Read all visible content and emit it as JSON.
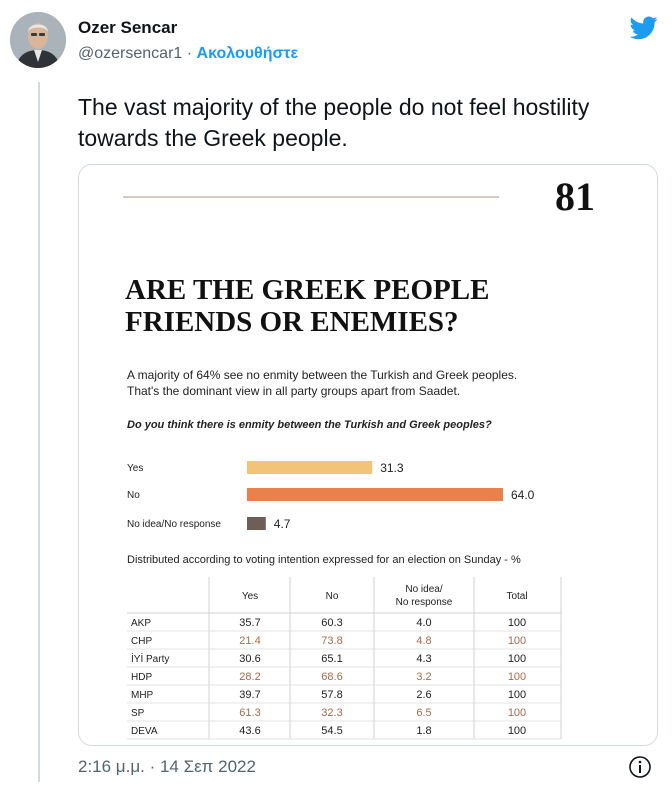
{
  "author": {
    "name": "Ozer Sencar",
    "handle": "@ozersencar1",
    "separator": "·",
    "follow_label": "Ακολουθήστε"
  },
  "tweet": {
    "text": "The vast majority of the people do not feel hostility towards the Greek people.",
    "timestamp": "2:16 μ.μ. · 14 Σεπ 2022"
  },
  "colors": {
    "link": "#1d9bf0",
    "muted": "#536471",
    "yes_bar": "#f2c47a",
    "no_bar": "#e8824a",
    "noidea_bar": "#6e5d59",
    "highlight_row": "#a86a4a"
  },
  "icons": {
    "brand": "twitter-bird-icon",
    "info": "info-icon"
  },
  "figure": {
    "page_number": "81",
    "title_line1": "ARE THE GREEK PEOPLE",
    "title_line2": "FRIENDS OR ENEMIES?",
    "intro_line1": "A majority of 64% see no enmity between the Turkish and Greek peoples.",
    "intro_line2": "That's the dominant view in all party groups apart from Saadet.",
    "question": "Do you think there is enmity between the Turkish and Greek peoples?",
    "table_caption": "Distributed according to voting intention expressed for an election on Sunday - %"
  },
  "chart_data": {
    "type": "bar",
    "orientation": "horizontal",
    "categories": [
      "Yes",
      "No",
      "No idea/No response"
    ],
    "values": [
      31.3,
      64.0,
      4.7
    ],
    "value_labels": [
      "31.3",
      "64.0",
      "4.7"
    ],
    "xlim": [
      0,
      100
    ],
    "colors": [
      "#f2c47a",
      "#e8824a",
      "#6e5d59"
    ]
  },
  "table": {
    "headers": [
      "",
      "Yes",
      "No",
      "No idea/",
      "No response",
      "Total"
    ],
    "rows": [
      {
        "party": "AKP",
        "yes": "35.7",
        "no": "60.3",
        "noidea": "4.0",
        "total": "100",
        "highlight": false
      },
      {
        "party": "CHP",
        "yes": "21.4",
        "no": "73.8",
        "noidea": "4.8",
        "total": "100",
        "highlight": true
      },
      {
        "party": "İYİ Party",
        "yes": "30.6",
        "no": "65.1",
        "noidea": "4.3",
        "total": "100",
        "highlight": false
      },
      {
        "party": "HDP",
        "yes": "28.2",
        "no": "68.6",
        "noidea": "3.2",
        "total": "100",
        "highlight": true
      },
      {
        "party": "MHP",
        "yes": "39.7",
        "no": "57.8",
        "noidea": "2.6",
        "total": "100",
        "highlight": false
      },
      {
        "party": "SP",
        "yes": "61.3",
        "no": "32.3",
        "noidea": "6.5",
        "total": "100",
        "highlight": true
      },
      {
        "party": "DEVA",
        "yes": "43.6",
        "no": "54.5",
        "noidea": "1.8",
        "total": "100",
        "highlight": false
      }
    ]
  }
}
